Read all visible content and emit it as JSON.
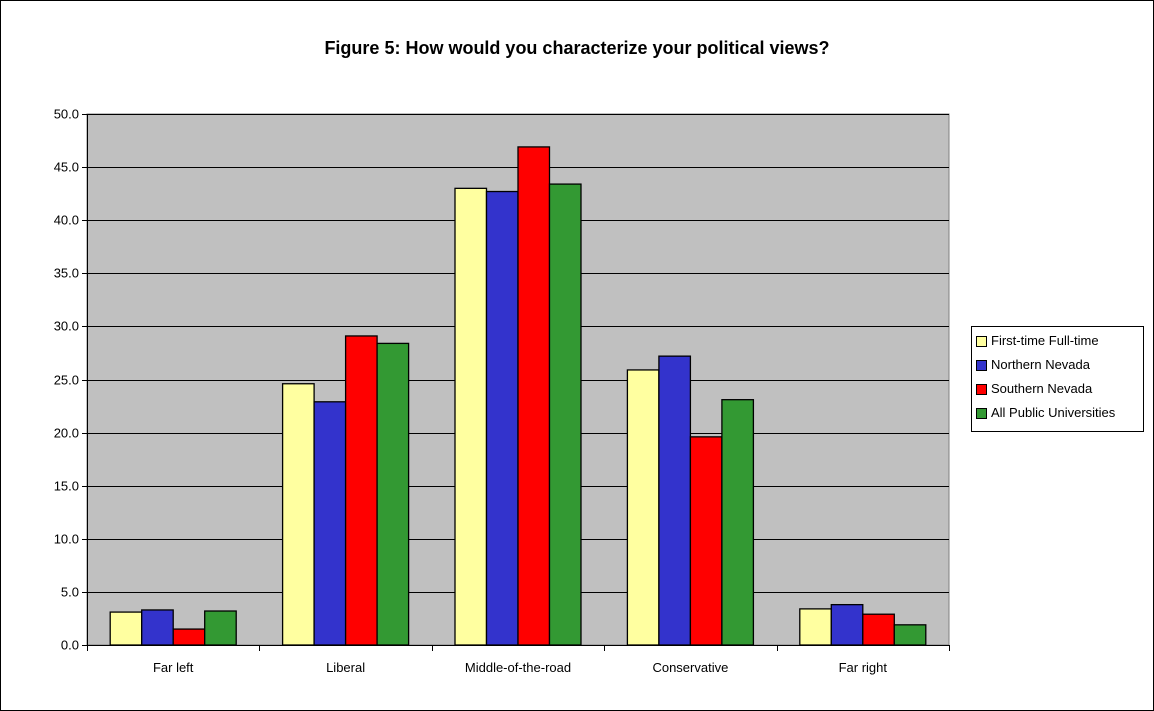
{
  "chart_data": {
    "type": "bar",
    "title": "Figure 5: How would you characterize your political views?",
    "xlabel": "",
    "ylabel": "",
    "categories": [
      "Far left",
      "Liberal",
      "Middle-of-the-road",
      "Conservative",
      "Far right"
    ],
    "series": [
      {
        "name": "First-time Full-time",
        "color": "#ffffa0",
        "values": [
          3.1,
          24.6,
          43.0,
          25.9,
          3.4
        ]
      },
      {
        "name": "Northern Nevada",
        "color": "#3333cc",
        "values": [
          3.3,
          22.9,
          42.7,
          27.2,
          3.8
        ]
      },
      {
        "name": "Southern Nevada",
        "color": "#ff0000",
        "values": [
          1.5,
          29.1,
          46.9,
          19.6,
          2.9
        ]
      },
      {
        "name": "All Public Universities",
        "color": "#339933",
        "values": [
          3.2,
          28.4,
          43.4,
          23.1,
          1.9
        ]
      }
    ],
    "ylim": [
      0,
      50
    ],
    "yticks": [
      "0.0",
      "5.0",
      "10.0",
      "15.0",
      "20.0",
      "25.0",
      "30.0",
      "35.0",
      "40.0",
      "45.0",
      "50.0"
    ],
    "grid": true,
    "plot_background": "#c0c0c0",
    "legend_position": "right"
  }
}
